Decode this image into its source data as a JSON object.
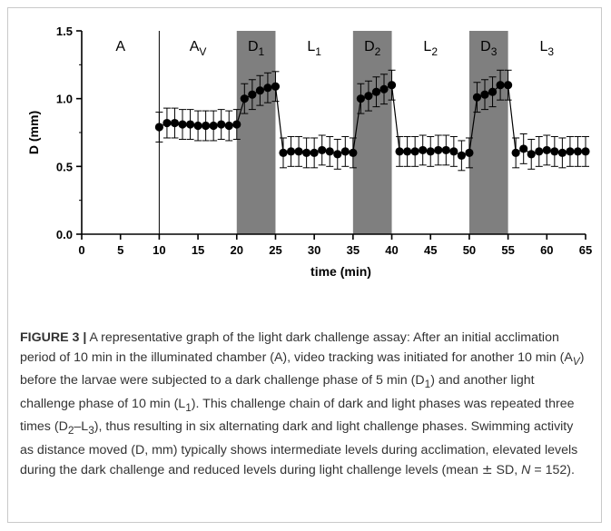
{
  "chart_data": {
    "type": "scatter",
    "xlabel": "time (min)",
    "ylabel": "D (mm)",
    "xlim": [
      0,
      65
    ],
    "ylim": [
      0,
      1.5
    ],
    "xticks": [
      "0",
      "5",
      "10",
      "15",
      "20",
      "25",
      "30",
      "35",
      "40",
      "45",
      "50",
      "55",
      "60",
      "65"
    ],
    "yticks": [
      "0.0",
      "0.5",
      "1.0",
      "1.5"
    ],
    "grid": false,
    "vline_at": 10,
    "phases": [
      {
        "label": "A",
        "sub": "",
        "x_start": 0,
        "x_end": 10,
        "shaded": false
      },
      {
        "label": "A",
        "sub": "V",
        "x_start": 10,
        "x_end": 20,
        "shaded": false
      },
      {
        "label": "D",
        "sub": "1",
        "x_start": 20,
        "x_end": 25,
        "shaded": true
      },
      {
        "label": "L",
        "sub": "1",
        "x_start": 25,
        "x_end": 35,
        "shaded": false
      },
      {
        "label": "D",
        "sub": "2",
        "x_start": 35,
        "x_end": 40,
        "shaded": true
      },
      {
        "label": "L",
        "sub": "2",
        "x_start": 40,
        "x_end": 50,
        "shaded": false
      },
      {
        "label": "D",
        "sub": "3",
        "x_start": 50,
        "x_end": 55,
        "shaded": true
      },
      {
        "label": "L",
        "sub": "3",
        "x_start": 55,
        "x_end": 65,
        "shaded": false
      }
    ],
    "series": [
      {
        "x": [
          10,
          11,
          12,
          13,
          14,
          15,
          16,
          17,
          18,
          19,
          20,
          21,
          22,
          23,
          24,
          25,
          26,
          27,
          28,
          29,
          30,
          31,
          32,
          33,
          34,
          35,
          36,
          37,
          38,
          39,
          40,
          41,
          42,
          43,
          44,
          45,
          46,
          47,
          48,
          49,
          50,
          51,
          52,
          53,
          54,
          55,
          56,
          57,
          58,
          59,
          60,
          61,
          62,
          63,
          64,
          65
        ],
        "y": [
          0.79,
          0.82,
          0.82,
          0.81,
          0.81,
          0.8,
          0.8,
          0.8,
          0.81,
          0.8,
          0.81,
          1.0,
          1.03,
          1.06,
          1.08,
          1.09,
          0.6,
          0.61,
          0.61,
          0.6,
          0.6,
          0.62,
          0.61,
          0.59,
          0.61,
          0.6,
          1.0,
          1.02,
          1.05,
          1.07,
          1.1,
          0.61,
          0.61,
          0.61,
          0.62,
          0.61,
          0.62,
          0.62,
          0.61,
          0.58,
          0.6,
          1.01,
          1.03,
          1.05,
          1.1,
          1.1,
          0.6,
          0.63,
          0.59,
          0.61,
          0.62,
          0.61,
          0.6,
          0.61,
          0.61,
          0.61
        ],
        "sd": 0.11
      }
    ]
  },
  "caption": {
    "label": "FIGURE 3 |",
    "t1": " A representative graph of the light dark challenge assay: After an initial acclimation period of 10 min in the illuminated chamber (A), video tracking was initiated for another 10 min (A",
    "s1": "V",
    "t2": ") before the larvae were subjected to a dark challenge phase of 5 min (D",
    "s2": "1",
    "t3": ") and another light challenge phase of 10 min (L",
    "s3": "1",
    "t4": "). This challenge chain of dark and light phases was repeated three times (D",
    "s4": "2",
    "t5": "–L",
    "s5": "3",
    "t6": "), thus resulting in six alternating dark and light challenge phases. Swimming activity as distance moved (D, mm) typically shows intermediate levels during acclimation, elevated levels during the dark challenge and reduced levels during light challenge levels (mean ",
    "pm": "±",
    "t7": " SD, ",
    "n": "N",
    "t8": " = 152)."
  }
}
